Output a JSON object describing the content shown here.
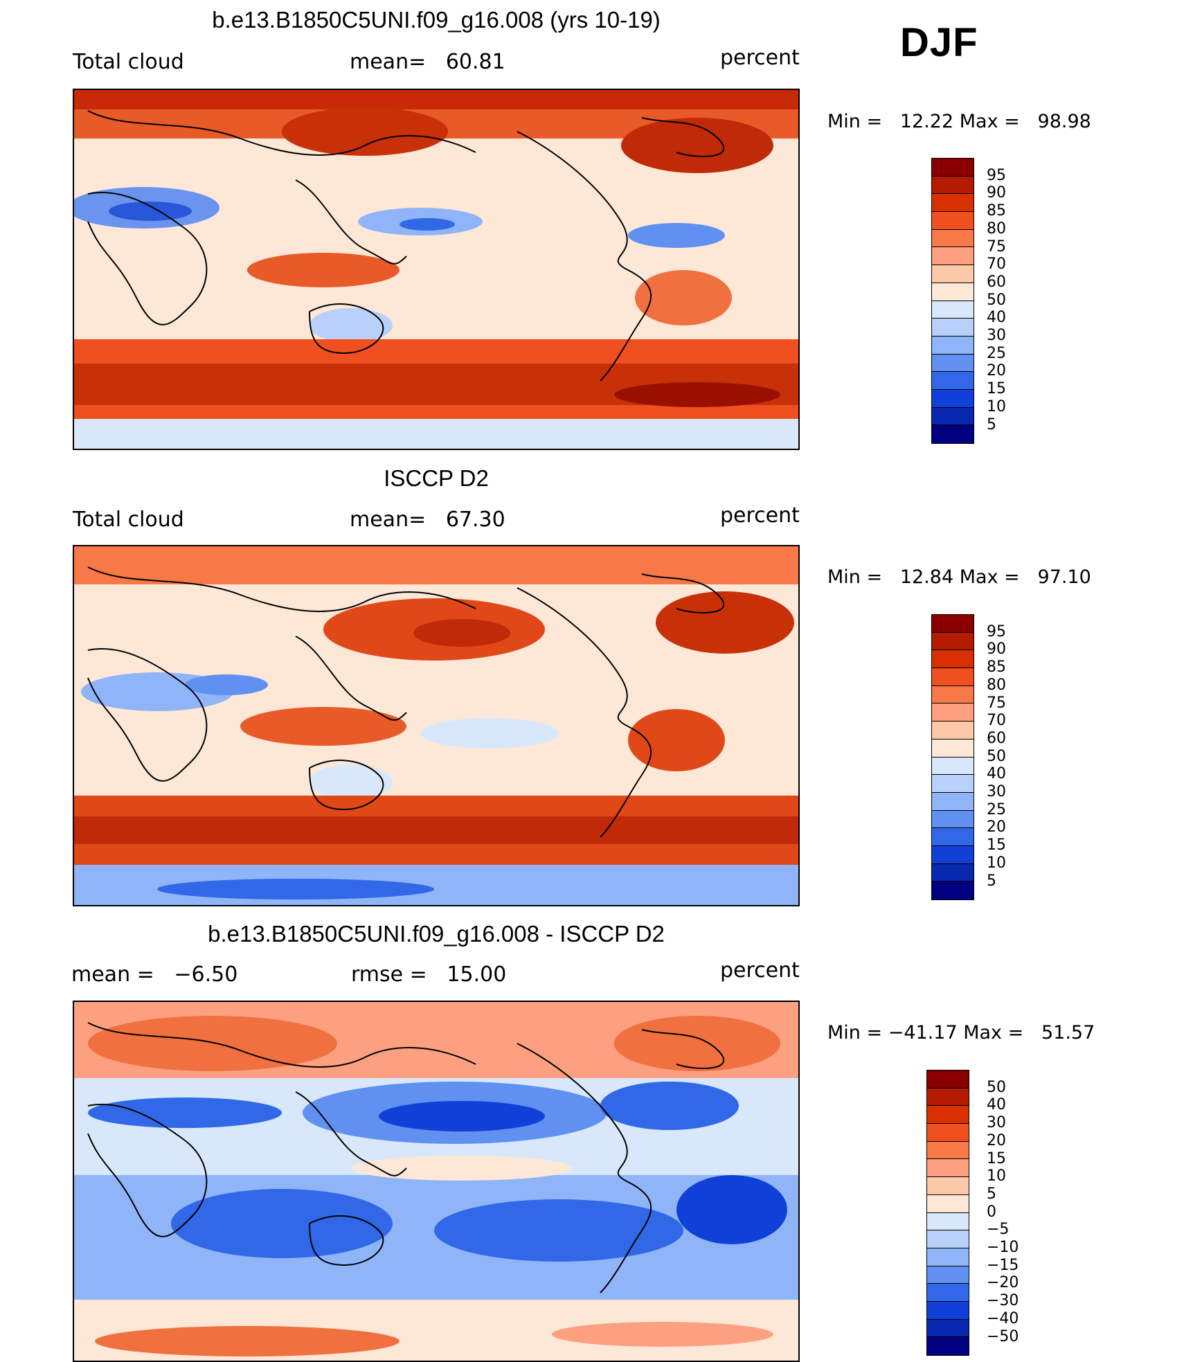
{
  "season": "DJF",
  "panels": [
    {
      "title": "b.e13.B1850C5UNI.f09_g16.008 (yrs 10-19)",
      "left_label": "Total cloud",
      "mid_label": "mean=   60.81",
      "right_label": "percent",
      "minmax": "Min =   12.22 Max =   98.98",
      "cbar_labels": [
        "95",
        "90",
        "85",
        "80",
        "75",
        "70",
        "60",
        "50",
        "40",
        "30",
        "25",
        "20",
        "15",
        "10",
        "5"
      ]
    },
    {
      "title": "ISCCP D2",
      "left_label": "Total cloud",
      "mid_label": "mean=   67.30",
      "right_label": "percent",
      "minmax": "Min =   12.84 Max =   97.10",
      "cbar_labels": [
        "95",
        "90",
        "85",
        "80",
        "75",
        "70",
        "60",
        "50",
        "40",
        "30",
        "25",
        "20",
        "15",
        "10",
        "5"
      ]
    },
    {
      "title": "b.e13.B1850C5UNI.f09_g16.008 - ISCCP D2",
      "left_label": "mean =   −6.50",
      "mid_label": "rmse =   15.00",
      "right_label": "percent",
      "minmax": "Min = −41.17 Max =   51.57",
      "cbar_labels": [
        "50",
        "40",
        "30",
        "20",
        "15",
        "10",
        "5",
        "0",
        "−5",
        "−10",
        "−15",
        "−20",
        "−30",
        "−40",
        "−50"
      ]
    }
  ],
  "colors": {
    "scale": [
      "#8a0000",
      "#b31a00",
      "#d83000",
      "#f05020",
      "#f87848",
      "#fca080",
      "#fdc8a8",
      "#fde8d8",
      "#d8e8fa",
      "#b8d0fa",
      "#90b4f8",
      "#6090f0",
      "#3068e8",
      "#1040d8",
      "#0828b0",
      "#000080"
    ]
  }
}
